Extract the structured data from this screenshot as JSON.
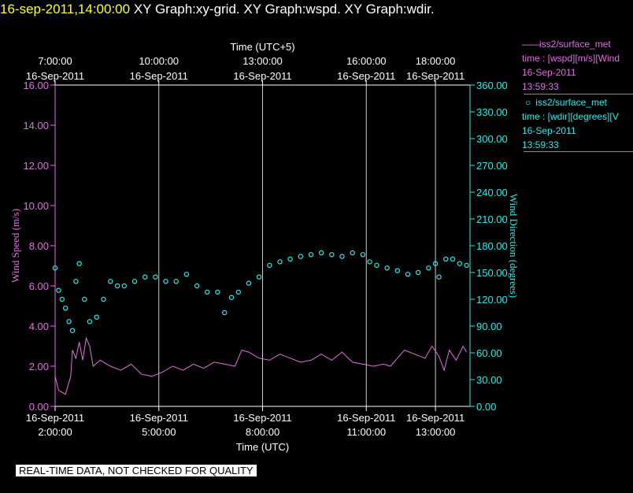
{
  "header": {
    "timestamp": "16-sep-2011,14:00:00",
    "graphs": "XY Graph:xy-grid.  XY Graph:wspd.  XY Graph:wdir."
  },
  "legend": {
    "wspd": {
      "name": "iss2/surface_met",
      "line": "time : [wspd][m/s][Wind",
      "date": "16-Sep-2011",
      "time": "13:59:33",
      "color": "#e070e0"
    },
    "wdir": {
      "name": "iss2/surface_met",
      "line": "time : [wdir][degrees][V",
      "date": "16-Sep-2011",
      "time": "13:59:33",
      "color": "#33e8e8"
    }
  },
  "disclaimer": "REAL-TIME DATA, NOT CHECKED FOR QUALITY",
  "chart_data": {
    "type": "line",
    "top_axis": {
      "label": "Time (UTC+5)",
      "ticks": [
        {
          "time": "7:00:00",
          "date": "16-Sep-2011",
          "utc_hour": 2
        },
        {
          "time": "10:00:00",
          "date": "16-Sep-2011",
          "utc_hour": 5
        },
        {
          "time": "13:00:00",
          "date": "16-Sep-2011",
          "utc_hour": 8
        },
        {
          "time": "16:00:00",
          "date": "16-Sep-2011",
          "utc_hour": 11
        },
        {
          "time": "18:00:00",
          "date": "16-Sep-2011",
          "utc_hour": 13
        }
      ]
    },
    "bottom_axis": {
      "label": "Time (UTC)",
      "ticks": [
        {
          "time": "2:00:00",
          "date": "16-Sep-2011",
          "utc_hour": 2
        },
        {
          "time": "5:00:00",
          "date": "16-Sep-2011",
          "utc_hour": 5
        },
        {
          "time": "8:00:00",
          "date": "16-Sep-2011",
          "utc_hour": 8
        },
        {
          "time": "11:00:00",
          "date": "16-Sep-2011",
          "utc_hour": 11
        },
        {
          "time": "13:00:00",
          "date": "16-Sep-2011",
          "utc_hour": 13
        }
      ],
      "range_utc_hours": [
        2,
        14
      ]
    },
    "left_axis": {
      "label": "Wind Speed (m/s)",
      "ylim": [
        0,
        16
      ],
      "ticks": [
        "0.00",
        "2.00",
        "4.00",
        "6.00",
        "8.00",
        "10.00",
        "12.00",
        "14.00",
        "16.00"
      ],
      "color": "#e070e0"
    },
    "right_axis": {
      "label": "Wind Direction (degrees)",
      "ylim": [
        0,
        360
      ],
      "ticks": [
        "0.00",
        "30.00",
        "60.00",
        "90.00",
        "120.00",
        "150.00",
        "180.00",
        "210.00",
        "240.00",
        "270.00",
        "300.00",
        "330.00",
        "360.00"
      ],
      "color": "#33e8e8"
    },
    "grid": "vertical lines at bottom-axis ticks",
    "series": [
      {
        "name": "iss2/surface_met wspd",
        "style": "line",
        "axis": "left",
        "color": "#e070e0",
        "points": [
          [
            2.0,
            1.5
          ],
          [
            2.1,
            0.8
          ],
          [
            2.3,
            0.6
          ],
          [
            2.45,
            1.5
          ],
          [
            2.5,
            2.8
          ],
          [
            2.6,
            2.4
          ],
          [
            2.7,
            3.2
          ],
          [
            2.8,
            2.3
          ],
          [
            2.9,
            3.4
          ],
          [
            3.0,
            3.0
          ],
          [
            3.1,
            2.0
          ],
          [
            3.3,
            2.3
          ],
          [
            3.6,
            2.0
          ],
          [
            3.9,
            1.8
          ],
          [
            4.2,
            2.1
          ],
          [
            4.5,
            1.6
          ],
          [
            4.8,
            1.5
          ],
          [
            5.1,
            1.7
          ],
          [
            5.4,
            2.0
          ],
          [
            5.7,
            1.8
          ],
          [
            6.0,
            2.1
          ],
          [
            6.3,
            1.9
          ],
          [
            6.6,
            2.2
          ],
          [
            6.9,
            2.1
          ],
          [
            7.2,
            2.0
          ],
          [
            7.4,
            2.8
          ],
          [
            7.6,
            2.7
          ],
          [
            7.9,
            2.4
          ],
          [
            8.2,
            2.3
          ],
          [
            8.5,
            2.6
          ],
          [
            8.8,
            2.4
          ],
          [
            9.1,
            2.2
          ],
          [
            9.4,
            2.3
          ],
          [
            9.7,
            2.6
          ],
          [
            10.0,
            2.3
          ],
          [
            10.3,
            2.7
          ],
          [
            10.6,
            2.2
          ],
          [
            10.9,
            2.1
          ],
          [
            11.2,
            2.0
          ],
          [
            11.5,
            2.1
          ],
          [
            11.7,
            2.0
          ],
          [
            11.9,
            2.4
          ],
          [
            12.1,
            2.8
          ],
          [
            12.4,
            2.6
          ],
          [
            12.7,
            2.4
          ],
          [
            12.9,
            3.0
          ],
          [
            13.1,
            2.5
          ],
          [
            13.25,
            1.8
          ],
          [
            13.4,
            2.8
          ],
          [
            13.6,
            2.3
          ],
          [
            13.8,
            3.0
          ],
          [
            13.9,
            2.7
          ]
        ]
      },
      {
        "name": "iss2/surface_met wdir",
        "style": "scatter",
        "axis": "right",
        "color": "#33e8e8",
        "points": [
          [
            2.0,
            155
          ],
          [
            2.1,
            130
          ],
          [
            2.2,
            120
          ],
          [
            2.3,
            110
          ],
          [
            2.4,
            95
          ],
          [
            2.5,
            85
          ],
          [
            2.6,
            140
          ],
          [
            2.7,
            160
          ],
          [
            2.85,
            120
          ],
          [
            3.0,
            95
          ],
          [
            3.2,
            100
          ],
          [
            3.4,
            120
          ],
          [
            3.6,
            140
          ],
          [
            3.8,
            135
          ],
          [
            4.0,
            135
          ],
          [
            4.3,
            140
          ],
          [
            4.6,
            145
          ],
          [
            4.9,
            145
          ],
          [
            5.2,
            140
          ],
          [
            5.5,
            140
          ],
          [
            5.8,
            148
          ],
          [
            6.1,
            135
          ],
          [
            6.4,
            128
          ],
          [
            6.7,
            128
          ],
          [
            6.9,
            105
          ],
          [
            7.1,
            122
          ],
          [
            7.3,
            128
          ],
          [
            7.6,
            138
          ],
          [
            7.9,
            145
          ],
          [
            8.2,
            158
          ],
          [
            8.5,
            162
          ],
          [
            8.8,
            165
          ],
          [
            9.1,
            168
          ],
          [
            9.4,
            170
          ],
          [
            9.7,
            172
          ],
          [
            10.0,
            170
          ],
          [
            10.3,
            168
          ],
          [
            10.6,
            172
          ],
          [
            10.9,
            170
          ],
          [
            11.1,
            162
          ],
          [
            11.3,
            158
          ],
          [
            11.6,
            155
          ],
          [
            11.9,
            152
          ],
          [
            12.2,
            148
          ],
          [
            12.5,
            150
          ],
          [
            12.8,
            155
          ],
          [
            13.0,
            160
          ],
          [
            13.1,
            145
          ],
          [
            13.3,
            165
          ],
          [
            13.5,
            165
          ],
          [
            13.7,
            160
          ],
          [
            13.9,
            158
          ]
        ]
      }
    ]
  }
}
